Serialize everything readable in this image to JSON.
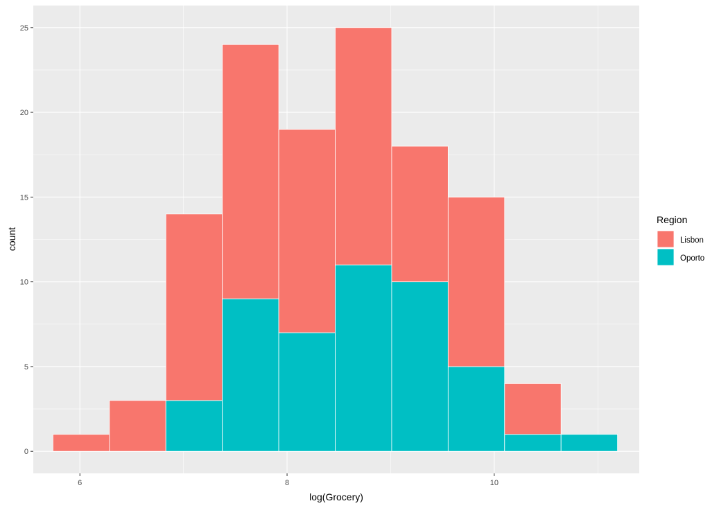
{
  "chart_data": {
    "type": "bar",
    "stacked": true,
    "histogram": true,
    "xlabel": "log(Grocery)",
    "ylabel": "count",
    "xlim": [
      5.55,
      11.4
    ],
    "ylim": [
      -1.3,
      26.3
    ],
    "x_ticks": [
      6,
      8,
      10
    ],
    "y_ticks": [
      0,
      5,
      10,
      15,
      20,
      25
    ],
    "x_tick_labels": [
      "6",
      "8",
      "10"
    ],
    "y_tick_labels": [
      "0",
      "5",
      "10",
      "15",
      "20",
      "25"
    ],
    "grid": true,
    "bin_width": 0.545,
    "bins": [
      {
        "x0": 5.74,
        "x1": 6.285,
        "Lisbon": 1,
        "Oporto": 0
      },
      {
        "x0": 6.285,
        "x1": 6.83,
        "Lisbon": 3,
        "Oporto": 0
      },
      {
        "x0": 6.83,
        "x1": 7.375,
        "Lisbon": 11,
        "Oporto": 3
      },
      {
        "x0": 7.375,
        "x1": 7.92,
        "Lisbon": 15,
        "Oporto": 9
      },
      {
        "x0": 7.92,
        "x1": 8.465,
        "Lisbon": 12,
        "Oporto": 7
      },
      {
        "x0": 8.465,
        "x1": 9.01,
        "Lisbon": 14,
        "Oporto": 11
      },
      {
        "x0": 9.01,
        "x1": 9.555,
        "Lisbon": 8,
        "Oporto": 10
      },
      {
        "x0": 9.555,
        "x1": 10.1,
        "Lisbon": 10,
        "Oporto": 5
      },
      {
        "x0": 10.1,
        "x1": 10.645,
        "Lisbon": 3,
        "Oporto": 1
      },
      {
        "x0": 10.645,
        "x1": 11.19,
        "Lisbon": 0,
        "Oporto": 1
      }
    ],
    "series": [
      {
        "name": "Lisbon",
        "color": "#F8766D"
      },
      {
        "name": "Oporto",
        "color": "#00BFC4"
      }
    ],
    "legend": {
      "title": "Region",
      "position": "right"
    },
    "colors": {
      "panel_background": "#EBEBEB",
      "grid_major": "#FFFFFF",
      "bar_outline": "#FFFFFF"
    }
  }
}
